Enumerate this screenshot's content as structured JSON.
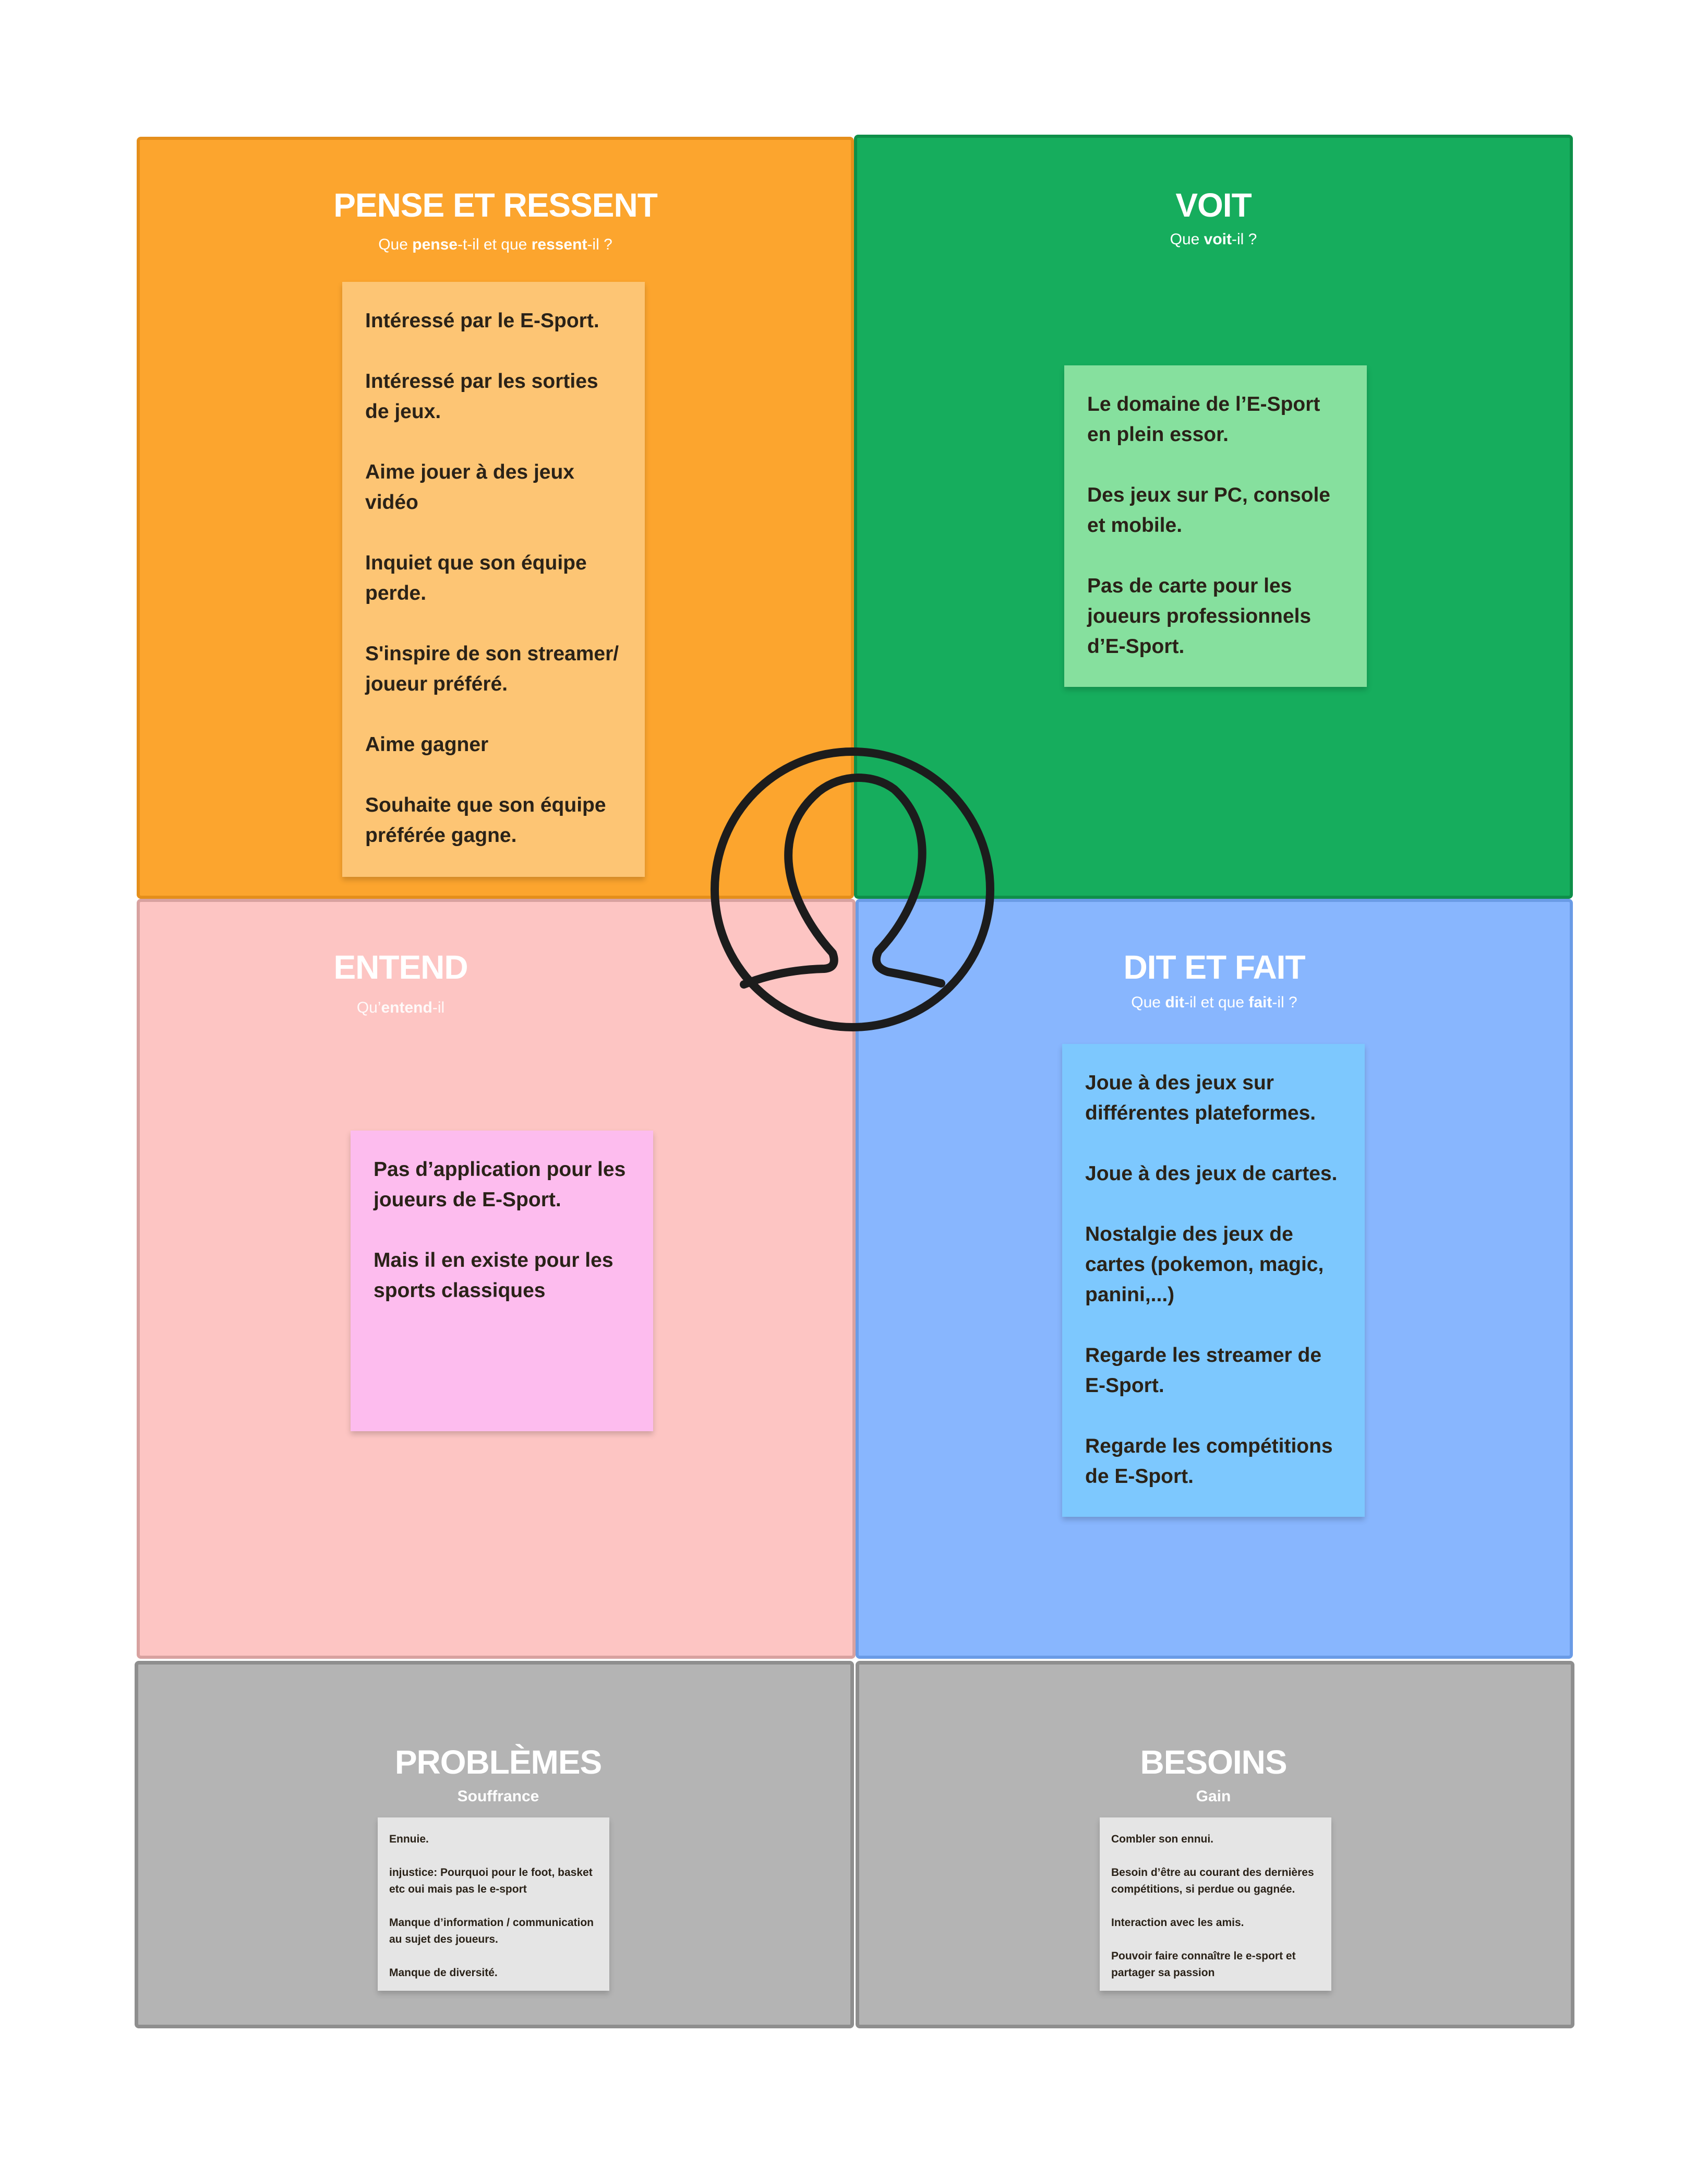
{
  "quadrants": {
    "pense": {
      "title": "PENSE ET RESSENT",
      "subtitle": {
        "p1": "Que ",
        "b1": "pense",
        "p2": "-t-il et que ",
        "b2": "ressent",
        "p3": "-il ?"
      },
      "notes": [
        "Intéressé par le E-Sport.",
        "Intéressé par les sorties de jeux.",
        "Aime jouer à des jeux vidéo",
        "Inquiet que son équipe perde.",
        "S'inspire de son streamer/ joueur préféré.",
        "Aime gagner",
        "Souhaite que son équipe préférée gagne."
      ]
    },
    "voit": {
      "title": "VOIT",
      "subtitle": {
        "p1": "Que ",
        "b1": "voit",
        "p2": "-il ?"
      },
      "notes": [
        "Le domaine de l’E-Sport en plein essor.",
        "Des jeux sur PC, console et mobile.",
        "Pas de carte pour les joueurs professionnels d’E-Sport."
      ]
    },
    "entend": {
      "title": "ENTEND",
      "subtitle": {
        "p1": "Qu’",
        "b1": "entend",
        "p2": "-il"
      },
      "notes": [
        "Pas d’application pour les joueurs de E-Sport.",
        "Mais il en existe pour les sports classiques"
      ]
    },
    "dit": {
      "title": "DIT ET FAIT",
      "subtitle": {
        "p1": "Que ",
        "b1": "dit",
        "p2": "-il et que ",
        "b2": "fait",
        "p3": "-il ?"
      },
      "notes": [
        "Joue à des jeux sur différentes plateformes.",
        "Joue à des jeux de cartes.",
        "Nostalgie des jeux de cartes (pokemon, magic, panini,...)",
        "Regarde les streamer de E-Sport.",
        "Regarde les compétitions de E-Sport."
      ]
    },
    "problemes": {
      "title": "PROBLÈMES",
      "subtitle": "Souffrance",
      "notes": [
        "Ennuie.",
        "injustice: Pourquoi pour le foot, basket etc oui mais pas le e-sport",
        "Manque d’information / communication au sujet des joueurs.",
        "Manque de diversité."
      ]
    },
    "besoins": {
      "title": "BESOINS",
      "subtitle": "Gain",
      "notes": [
        "Combler son ennui.",
        "Besoin d’être au courant des dernières compétitions, si perdue ou gagnée.",
        "Interaction avec les amis.",
        "Pouvoir faire connaître le e-sport et partager sa passion"
      ]
    }
  },
  "colors": {
    "pense": "#fca52e",
    "voit": "#16ad5d",
    "entend": "#fdc5c3",
    "dit": "#88b6fe",
    "gray": "#b4b4b4",
    "icon_stroke": "#1c1c1c"
  },
  "icon": "persona-user-icon"
}
